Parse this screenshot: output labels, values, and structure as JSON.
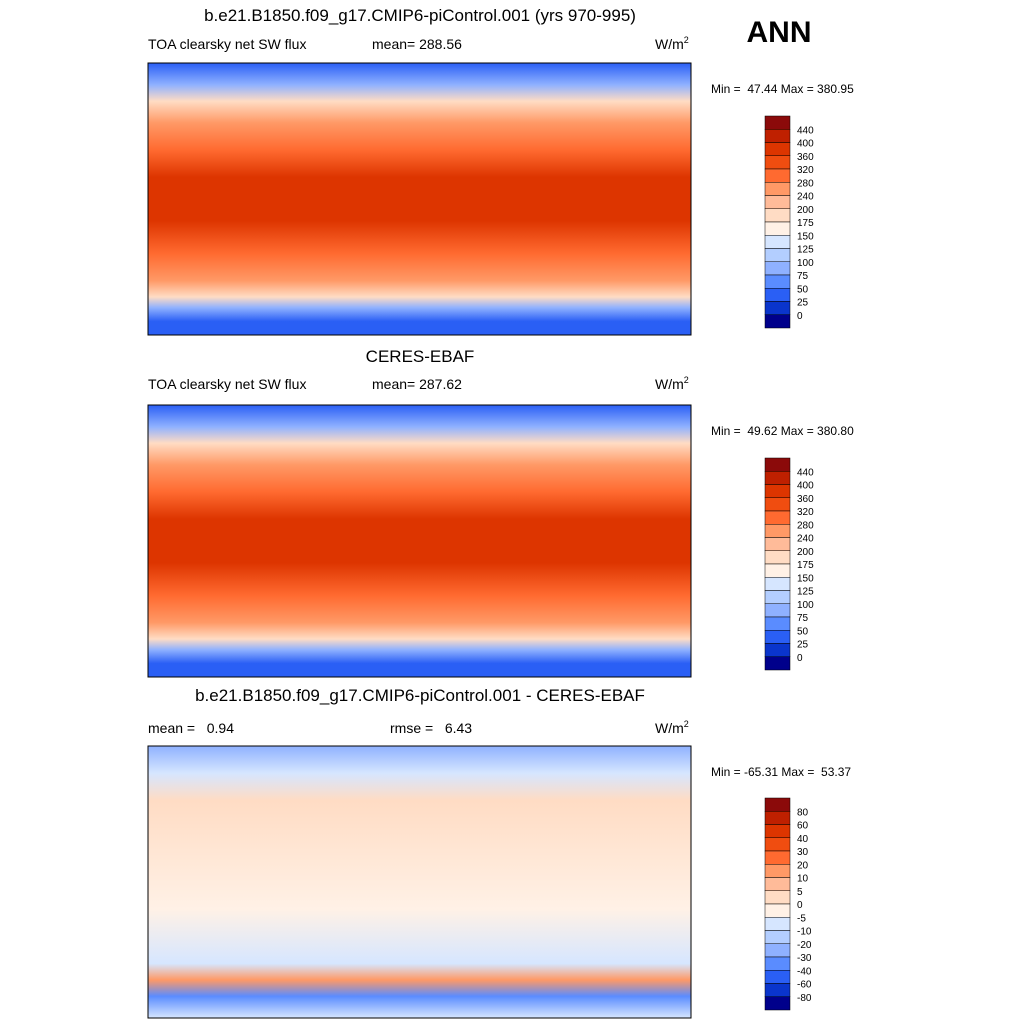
{
  "heading": "ANN",
  "panels": [
    {
      "title": "b.e21.B1850.f09_g17.CMIP6-piControl.001 (yrs 970-995)",
      "left_label": "TOA clearsky net SW flux",
      "center_label": "mean= 288.56",
      "units": "W/m",
      "units_exponent": "2",
      "minmax": "Min =  47.44 Max = 380.95",
      "colorbar": {
        "levels": [
          440,
          400,
          360,
          320,
          280,
          240,
          200,
          175,
          150,
          125,
          100,
          75,
          50,
          25,
          0
        ],
        "colors": [
          "#8b0a0a",
          "#bf2000",
          "#dd3500",
          "#f04d10",
          "#ff6a30",
          "#ff9966",
          "#ffbb99",
          "#ffdcc4",
          "#fff1e6",
          "#d6e6ff",
          "#b3ceff",
          "#8fb1ff",
          "#5a8cff",
          "#2a5ff5",
          "#0a35cc",
          "#00008b"
        ]
      }
    },
    {
      "title": "CERES-EBAF",
      "left_label": "TOA clearsky net SW flux",
      "center_label": "mean= 287.62",
      "units": "W/m",
      "units_exponent": "2",
      "minmax": "Min =  49.62 Max = 380.80",
      "colorbar": {
        "levels": [
          440,
          400,
          360,
          320,
          280,
          240,
          200,
          175,
          150,
          125,
          100,
          75,
          50,
          25,
          0
        ],
        "colors": [
          "#8b0a0a",
          "#bf2000",
          "#dd3500",
          "#f04d10",
          "#ff6a30",
          "#ff9966",
          "#ffbb99",
          "#ffdcc4",
          "#fff1e6",
          "#d6e6ff",
          "#b3ceff",
          "#8fb1ff",
          "#5a8cff",
          "#2a5ff5",
          "#0a35cc",
          "#00008b"
        ]
      }
    },
    {
      "title": "b.e21.B1850.f09_g17.CMIP6-piControl.001 - CERES-EBAF",
      "left_label": "mean =   0.94",
      "center_label": "rmse =   6.43",
      "units": "W/m",
      "units_exponent": "2",
      "minmax": "Min = -65.31 Max =  53.37",
      "colorbar": {
        "levels": [
          80,
          60,
          40,
          30,
          20,
          10,
          5,
          0,
          -5,
          -10,
          -20,
          -30,
          -40,
          -60,
          -80
        ],
        "colors": [
          "#8b0a0a",
          "#bf2000",
          "#dd3500",
          "#f04d10",
          "#ff6a30",
          "#ff9966",
          "#ffbb99",
          "#ffdcc4",
          "#fff1e6",
          "#d6e6ff",
          "#b3ceff",
          "#8fb1ff",
          "#5a8cff",
          "#2a5ff5",
          "#0a35cc",
          "#00008b"
        ]
      }
    }
  ]
}
